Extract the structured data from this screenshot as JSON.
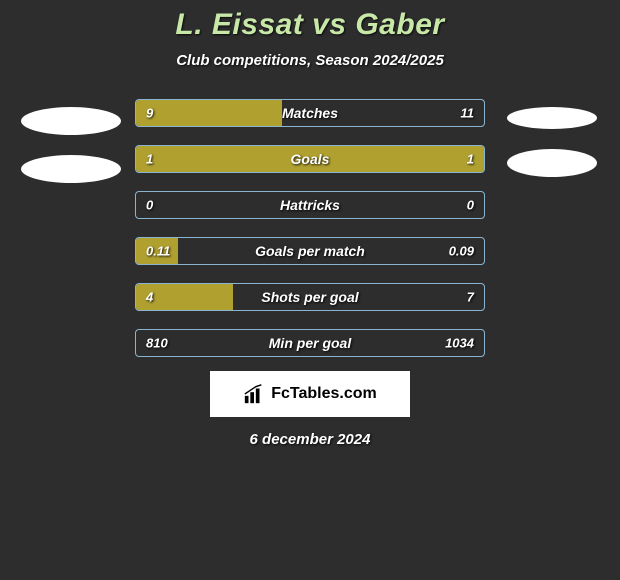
{
  "title": "L. Eissat vs Gaber",
  "subtitle": "Club competitions, Season 2024/2025",
  "date": "6 december 2024",
  "logo_text": "FcTables.com",
  "colors": {
    "background": "#2d2d2d",
    "title": "#c8e8a8",
    "text": "#ffffff",
    "bar_fill": "#b0a030",
    "bar_border": "#8ab5d0",
    "oval": "#ffffff",
    "logo_bg": "#ffffff"
  },
  "stats": [
    {
      "label": "Matches",
      "left_value": "9",
      "right_value": "11",
      "left_width": 42,
      "right_width": 0
    },
    {
      "label": "Goals",
      "left_value": "1",
      "right_value": "1",
      "left_width": 50,
      "right_width": 50
    },
    {
      "label": "Hattricks",
      "left_value": "0",
      "right_value": "0",
      "left_width": 0,
      "right_width": 0
    },
    {
      "label": "Goals per match",
      "left_value": "0.11",
      "right_value": "0.09",
      "left_width": 12,
      "right_width": 0
    },
    {
      "label": "Shots per goal",
      "left_value": "4",
      "right_value": "7",
      "left_width": 28,
      "right_width": 0
    },
    {
      "label": "Min per goal",
      "left_value": "810",
      "right_value": "1034",
      "left_width": 0,
      "right_width": 0
    }
  ]
}
